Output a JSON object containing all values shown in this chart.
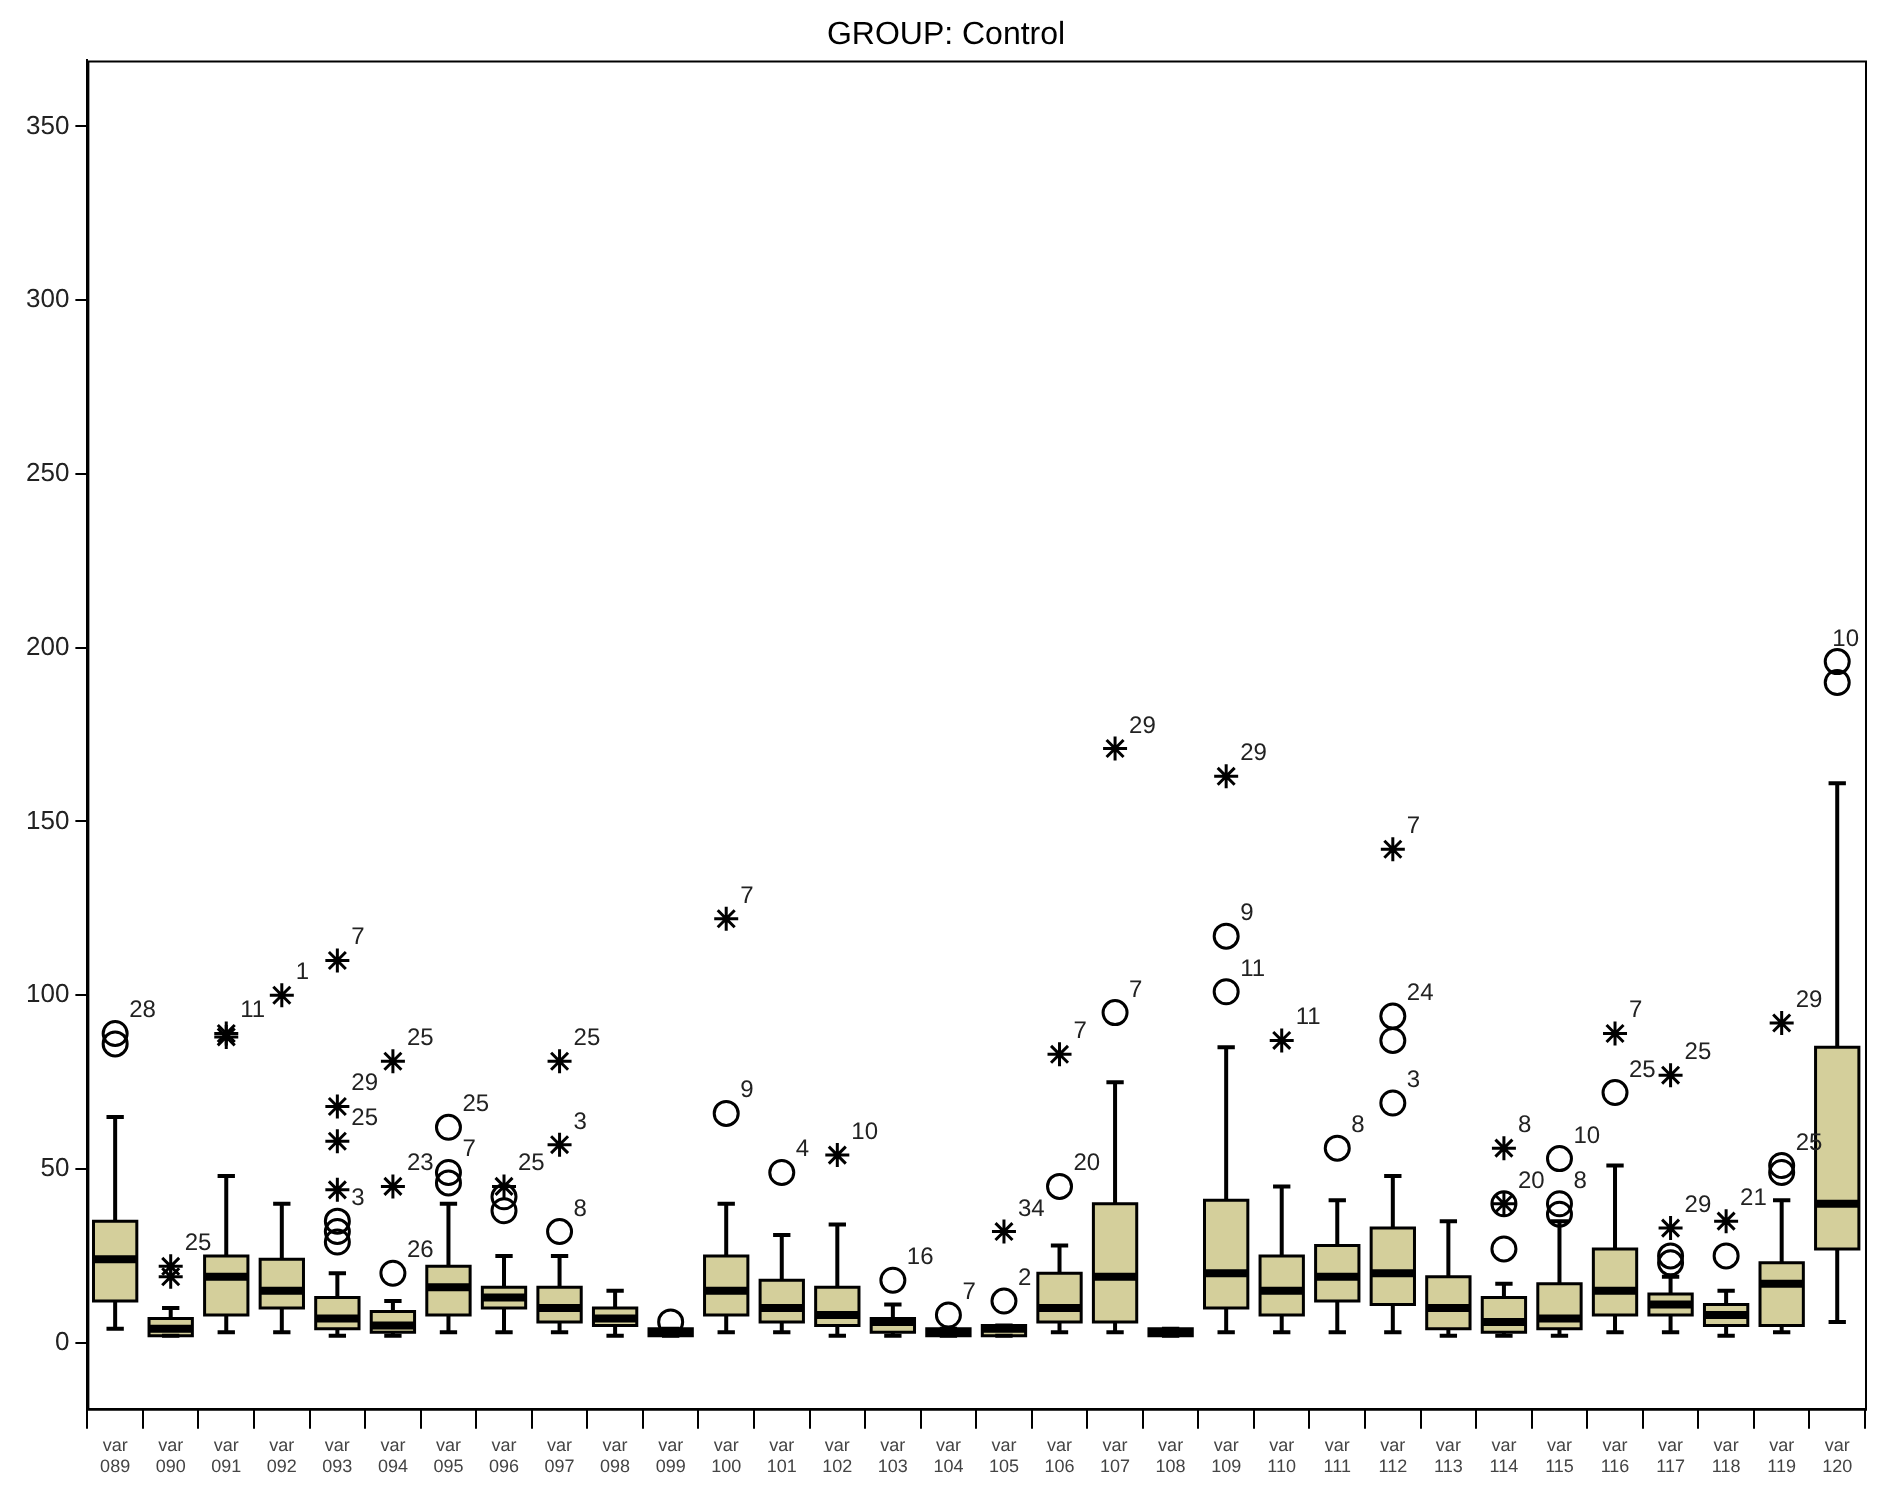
{
  "chart_data": {
    "type": "box",
    "title": "GROUP: Control",
    "categories": [
      "var 089",
      "var 090",
      "var 091",
      "var 092",
      "var 093",
      "var 094",
      "var 095",
      "var 096",
      "var 097",
      "var 098",
      "var 099",
      "var 100",
      "var 101",
      "var 102",
      "var 103",
      "var 104",
      "var 105",
      "var 106",
      "var 107",
      "var 108",
      "var 109",
      "var 110",
      "var 111",
      "var 112",
      "var 113",
      "var 114",
      "var 115",
      "var 116",
      "var 117",
      "var 118",
      "var 119",
      "var 120"
    ],
    "ylim": [
      -19,
      369
    ],
    "yticks": [
      0,
      50,
      100,
      150,
      200,
      250,
      300,
      350
    ],
    "grid": false,
    "legend": false,
    "series": [
      {
        "color": "#d4cf9b",
        "boxes": [
          {
            "low": 4,
            "q1": 12,
            "median": 24,
            "q3": 35,
            "high": 65
          },
          {
            "low": 2,
            "q1": 2,
            "median": 4,
            "q3": 7,
            "high": 10
          },
          {
            "low": 3,
            "q1": 8,
            "median": 19,
            "q3": 25,
            "high": 48
          },
          {
            "low": 3,
            "q1": 10,
            "median": 15,
            "q3": 24,
            "high": 40
          },
          {
            "low": 2,
            "q1": 4,
            "median": 7,
            "q3": 13,
            "high": 20
          },
          {
            "low": 2,
            "q1": 3,
            "median": 5,
            "q3": 9,
            "high": 12
          },
          {
            "low": 3,
            "q1": 8,
            "median": 16,
            "q3": 22,
            "high": 40
          },
          {
            "low": 3,
            "q1": 10,
            "median": 13,
            "q3": 16,
            "high": 25
          },
          {
            "low": 3,
            "q1": 6,
            "median": 10,
            "q3": 16,
            "high": 25
          },
          {
            "low": 2,
            "q1": 5,
            "median": 7,
            "q3": 10,
            "high": 15
          },
          {
            "low": 2,
            "q1": 2,
            "median": 3,
            "q3": 4,
            "high": 4
          },
          {
            "low": 3,
            "q1": 8,
            "median": 15,
            "q3": 25,
            "high": 40
          },
          {
            "low": 3,
            "q1": 6,
            "median": 10,
            "q3": 18,
            "high": 31
          },
          {
            "low": 2,
            "q1": 5,
            "median": 8,
            "q3": 16,
            "high": 34
          },
          {
            "low": 2,
            "q1": 3,
            "median": 6,
            "q3": 7,
            "high": 11
          },
          {
            "low": 2,
            "q1": 2,
            "median": 3,
            "q3": 4,
            "high": 4
          },
          {
            "low": 2,
            "q1": 2,
            "median": 4,
            "q3": 5,
            "high": 5
          },
          {
            "low": 3,
            "q1": 6,
            "median": 10,
            "q3": 20,
            "high": 28
          },
          {
            "low": 3,
            "q1": 6,
            "median": 19,
            "q3": 40,
            "high": 75
          },
          {
            "low": 2,
            "q1": 2,
            "median": 3,
            "q3": 4,
            "high": 4
          },
          {
            "low": 3,
            "q1": 10,
            "median": 20,
            "q3": 41,
            "high": 85
          },
          {
            "low": 3,
            "q1": 8,
            "median": 15,
            "q3": 25,
            "high": 45
          },
          {
            "low": 3,
            "q1": 12,
            "median": 19,
            "q3": 28,
            "high": 41
          },
          {
            "low": 3,
            "q1": 11,
            "median": 20,
            "q3": 33,
            "high": 48
          },
          {
            "low": 2,
            "q1": 4,
            "median": 10,
            "q3": 19,
            "high": 35
          },
          {
            "low": 2,
            "q1": 3,
            "median": 6,
            "q3": 13,
            "high": 17
          },
          {
            "low": 2,
            "q1": 4,
            "median": 7,
            "q3": 17,
            "high": 35
          },
          {
            "low": 3,
            "q1": 8,
            "median": 15,
            "q3": 27,
            "high": 51
          },
          {
            "low": 3,
            "q1": 8,
            "median": 11,
            "q3": 14,
            "high": 19
          },
          {
            "low": 2,
            "q1": 5,
            "median": 8,
            "q3": 11,
            "high": 15
          },
          {
            "low": 3,
            "q1": 5,
            "median": 17,
            "q3": 23,
            "high": 41
          },
          {
            "low": 6,
            "q1": 27,
            "median": 40,
            "q3": 85,
            "high": 161
          }
        ]
      },
      {
        "type": "scatter",
        "marker": "circle",
        "color": "#000000",
        "x": [
          "var 089",
          "var 089",
          "var 093",
          "var 093",
          "var 093",
          "var 094",
          "var 095",
          "var 095",
          "var 095",
          "var 096",
          "var 096",
          "var 097",
          "var 099",
          "var 100",
          "var 101",
          "var 103",
          "var 104",
          "var 105",
          "var 106",
          "var 107",
          "var 109",
          "var 109",
          "var 111",
          "var 112",
          "var 112",
          "var 112",
          "var 114",
          "var 114",
          "var 115",
          "var 115",
          "var 115",
          "var 116",
          "var 117",
          "var 117",
          "var 118",
          "var 119",
          "var 119",
          "var 120",
          "var 120"
        ],
        "values": [
          86,
          89,
          29,
          32,
          35,
          20,
          46,
          49,
          62,
          38,
          42,
          32,
          6,
          66,
          49,
          18,
          8,
          12,
          45,
          95,
          101,
          117,
          56,
          69,
          87,
          94,
          27,
          40,
          37,
          40,
          53,
          72,
          23,
          25,
          25,
          49,
          51,
          190,
          196
        ]
      },
      {
        "type": "scatter",
        "marker": "cross",
        "color": "#000000",
        "x": [
          "var 090",
          "var 090",
          "var 091",
          "var 091",
          "var 092",
          "var 093",
          "var 093",
          "var 093",
          "var 093",
          "var 094",
          "var 094",
          "var 096",
          "var 097",
          "var 097",
          "var 100",
          "var 102",
          "var 105",
          "var 106",
          "var 107",
          "var 109",
          "var 110",
          "var 112",
          "var 114",
          "var 114",
          "var 116",
          "var 117",
          "var 117",
          "var 118",
          "var 119"
        ],
        "values": [
          19,
          22,
          88,
          89,
          100,
          44,
          58,
          68,
          110,
          45,
          81,
          45,
          57,
          81,
          122,
          54,
          32,
          83,
          171,
          163,
          87,
          142,
          40,
          56,
          89,
          33,
          77,
          35,
          92
        ]
      }
    ],
    "annotations": [
      {
        "text": "28",
        "x": "var 089",
        "y": 89
      },
      {
        "text": "25",
        "x": "var 090",
        "y": 22
      },
      {
        "text": "11",
        "x": "var 091",
        "y": 89
      },
      {
        "text": "1",
        "x": "var 092",
        "y": 100
      },
      {
        "text": "7",
        "x": "var 093",
        "y": 110
      },
      {
        "text": "29",
        "x": "var 093",
        "y": 68
      },
      {
        "text": "25",
        "x": "var 093",
        "y": 58
      },
      {
        "text": "3",
        "x": "var 093",
        "y": 35
      },
      {
        "text": "25",
        "x": "var 094",
        "y": 81
      },
      {
        "text": "23",
        "x": "var 094",
        "y": 45
      },
      {
        "text": "26",
        "x": "var 094",
        "y": 20
      },
      {
        "text": "25",
        "x": "var 095",
        "y": 62
      },
      {
        "text": "7",
        "x": "var 095",
        "y": 49
      },
      {
        "text": "25",
        "x": "var 096",
        "y": 45
      },
      {
        "text": "25",
        "x": "var 097",
        "y": 81
      },
      {
        "text": "3",
        "x": "var 097",
        "y": 57
      },
      {
        "text": "8",
        "x": "var 097",
        "y": 32
      },
      {
        "text": "9",
        "x": "var 100",
        "y": 66
      },
      {
        "text": "7",
        "x": "var 100",
        "y": 122
      },
      {
        "text": "4",
        "x": "var 101",
        "y": 49
      },
      {
        "text": "10",
        "x": "var 102",
        "y": 54
      },
      {
        "text": "16",
        "x": "var 103",
        "y": 18
      },
      {
        "text": "7",
        "x": "var 104",
        "y": 8
      },
      {
        "text": "34",
        "x": "var 105",
        "y": 32
      },
      {
        "text": "2",
        "x": "var 105",
        "y": 12
      },
      {
        "text": "20",
        "x": "var 106",
        "y": 45
      },
      {
        "text": "7",
        "x": "var 106",
        "y": 83
      },
      {
        "text": "7",
        "x": "var 107",
        "y": 95
      },
      {
        "text": "29",
        "x": "var 107",
        "y": 171
      },
      {
        "text": "29",
        "x": "var 109",
        "y": 163
      },
      {
        "text": "9",
        "x": "var 109",
        "y": 117
      },
      {
        "text": "11",
        "x": "var 109",
        "y": 101
      },
      {
        "text": "11",
        "x": "var 110",
        "y": 87
      },
      {
        "text": "8",
        "x": "var 111",
        "y": 56
      },
      {
        "text": "7",
        "x": "var 112",
        "y": 142
      },
      {
        "text": "24",
        "x": "var 112",
        "y": 94
      },
      {
        "text": "3",
        "x": "var 112",
        "y": 69
      },
      {
        "text": "8",
        "x": "var 114",
        "y": 56
      },
      {
        "text": "20",
        "x": "var 114",
        "y": 40
      },
      {
        "text": "10",
        "x": "var 115",
        "y": 53
      },
      {
        "text": "8",
        "x": "var 115",
        "y": 40
      },
      {
        "text": "7",
        "x": "var 116",
        "y": 89
      },
      {
        "text": "25",
        "x": "var 116",
        "y": 72
      },
      {
        "text": "25",
        "x": "var 117",
        "y": 77
      },
      {
        "text": "29",
        "x": "var 117",
        "y": 33
      },
      {
        "text": "21",
        "x": "var 118",
        "y": 35
      },
      {
        "text": "29",
        "x": "var 119",
        "y": 92
      },
      {
        "text": "25",
        "x": "var 119",
        "y": 51
      },
      {
        "text": "10",
        "x": "var 120",
        "y": 196
      }
    ]
  }
}
